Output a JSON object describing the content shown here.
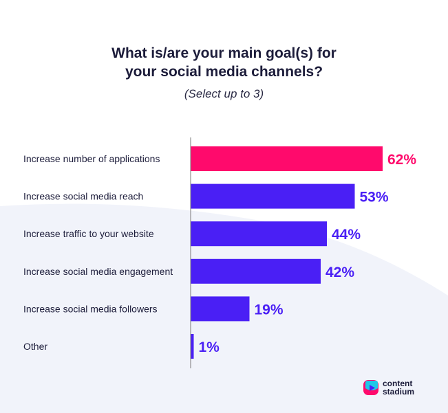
{
  "header": {
    "title_line1": "What is/are your main goal(s) for",
    "title_line2": "your social media channels?",
    "subtitle": "(Select up to 3)"
  },
  "brand": {
    "line1": "content",
    "line2": "stadium"
  },
  "colors": {
    "highlight": "#FF0A6C",
    "bar": "#4A1FF5",
    "axis": "#7a7a7a",
    "background_shape": "#F1F3FA"
  },
  "chart_data": {
    "type": "bar",
    "orientation": "horizontal",
    "categories": [
      "Increase number of applications",
      "Increase social media reach",
      "Increase traffic to your website",
      "Increase social media engagement",
      "Increase social media followers",
      "Other"
    ],
    "values": [
      62,
      53,
      44,
      42,
      19,
      1
    ],
    "value_labels": [
      "62%",
      "53%",
      "44%",
      "42%",
      "19%",
      "1%"
    ],
    "highlighted_index": 0,
    "xlim": [
      0,
      100
    ],
    "grid": false,
    "legend": "none"
  }
}
